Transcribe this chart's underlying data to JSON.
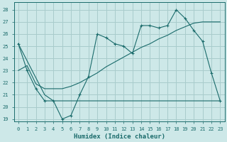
{
  "xlabel": "Humidex (Indice chaleur)",
  "bg_color": "#cde8e8",
  "grid_color": "#a8cccc",
  "line_color": "#1a6b6b",
  "xlim": [
    -0.5,
    23.5
  ],
  "ylim": [
    18.8,
    28.6
  ],
  "xticks": [
    0,
    1,
    2,
    3,
    4,
    5,
    6,
    7,
    8,
    9,
    10,
    11,
    12,
    13,
    14,
    15,
    16,
    17,
    18,
    19,
    20,
    21,
    22,
    23
  ],
  "yticks": [
    19,
    20,
    21,
    22,
    23,
    24,
    25,
    26,
    27,
    28
  ],
  "series1_x": [
    0,
    1,
    2,
    3,
    4,
    5,
    6,
    7,
    8,
    9,
    10,
    11,
    12,
    13,
    14,
    15,
    16,
    17,
    18,
    19,
    20,
    21,
    22,
    23
  ],
  "series1_y": [
    25.2,
    23.0,
    21.5,
    20.5,
    20.5,
    19.0,
    19.3,
    21.0,
    22.5,
    26.0,
    25.7,
    25.2,
    25.0,
    24.4,
    26.7,
    26.7,
    26.5,
    26.7,
    28.0,
    27.3,
    26.3,
    25.4,
    22.8,
    20.5
  ],
  "series2_x": [
    0,
    3,
    4,
    20,
    23
  ],
  "series2_y": [
    25.2,
    21.0,
    20.5,
    20.5,
    20.5
  ],
  "series3_x": [
    0,
    1,
    2,
    3,
    4,
    5,
    6,
    7,
    8,
    9,
    10,
    11,
    12,
    13,
    14,
    15,
    16,
    17,
    18,
    19,
    20,
    21,
    22,
    23
  ],
  "series3_y": [
    23.0,
    23.4,
    21.9,
    21.5,
    21.5,
    21.5,
    21.7,
    22.0,
    22.4,
    22.8,
    23.3,
    23.7,
    24.1,
    24.5,
    24.9,
    25.2,
    25.6,
    25.9,
    26.3,
    26.6,
    26.9,
    27.0,
    27.0,
    27.0
  ]
}
